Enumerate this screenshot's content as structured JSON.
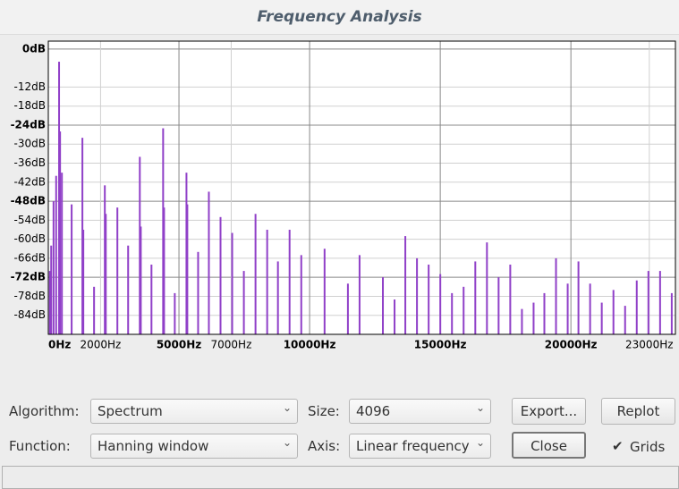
{
  "window_title": "Frequency Analysis",
  "chart_data": {
    "type": "bar",
    "color": "#9040c8",
    "x": [
      60,
      110,
      200,
      300,
      412,
      450,
      520,
      893,
      1305,
      1340,
      1751,
      2163,
      2200,
      2643,
      3055,
      3502,
      3540,
      3948,
      4394,
      4430,
      4840,
      5287,
      5320,
      5733,
      6145,
      6591,
      7037,
      7484,
      7930,
      8376,
      8788,
      9234,
      9681,
      10573,
      11466,
      11912,
      12805,
      13251,
      13663,
      14109,
      14556,
      15002,
      15448,
      15894,
      16341,
      16787,
      17233,
      17679,
      18126,
      18572,
      18984,
      19430,
      19877,
      20289,
      20735,
      21181,
      21628,
      22074,
      22520,
      22966,
      23413,
      23859
    ],
    "values": [
      -70,
      -62,
      -48,
      -40,
      -4,
      -26,
      -39,
      -49,
      -28,
      -57,
      -75,
      -43,
      -52,
      -50,
      -62,
      -34,
      -56,
      -68,
      -25,
      -50,
      -77,
      -39,
      -49,
      -64,
      -45,
      -53,
      -58,
      -70,
      -52,
      -57,
      -67,
      -57,
      -65,
      -63,
      -74,
      -65,
      -72,
      -79,
      -59,
      -66,
      -68,
      -71,
      -77,
      -75,
      -67,
      -61,
      -72,
      -68,
      -82,
      -80,
      -77,
      -66,
      -74,
      -67,
      -74,
      -80,
      -76,
      -81,
      -73,
      -70,
      -70,
      -77
    ],
    "xlim": [
      0,
      24000
    ],
    "ylim": [
      -90,
      2.5
    ],
    "xticks": [
      {
        "value": 0,
        "label": "0Hz"
      },
      {
        "value": 2000,
        "label": "2000Hz"
      },
      {
        "value": 5000,
        "label": "5000Hz"
      },
      {
        "value": 7000,
        "label": "7000Hz"
      },
      {
        "value": 10000,
        "label": "10000Hz"
      },
      {
        "value": 15000,
        "label": "15000Hz"
      },
      {
        "value": 20000,
        "label": "20000Hz"
      },
      {
        "value": 23000,
        "label": "23000Hz"
      }
    ],
    "yticks": [
      {
        "value": 0,
        "label": "0dB"
      },
      {
        "value": -12,
        "label": "-12dB"
      },
      {
        "value": -18,
        "label": "-18dB"
      },
      {
        "value": -24,
        "label": "-24dB"
      },
      {
        "value": -30,
        "label": "-30dB"
      },
      {
        "value": -36,
        "label": "-36dB"
      },
      {
        "value": -42,
        "label": "-42dB"
      },
      {
        "value": -48,
        "label": "-48dB"
      },
      {
        "value": -54,
        "label": "-54dB"
      },
      {
        "value": -60,
        "label": "-60dB"
      },
      {
        "value": -66,
        "label": "-66dB"
      },
      {
        "value": -72,
        "label": "-72dB"
      },
      {
        "value": -78,
        "label": "-78dB"
      },
      {
        "value": -84,
        "label": "-84dB"
      }
    ],
    "grid": true
  },
  "controls": {
    "algorithm_label": "Algorithm:",
    "algorithm": "Spectrum",
    "size_label": "Size:",
    "size": "4096",
    "export": "Export...",
    "replot": "Replot",
    "function_label": "Function:",
    "function": "Hanning window",
    "axis_label": "Axis:",
    "axis": "Linear frequency",
    "close": "Close",
    "grids_label": "Grids",
    "grids_checked": true
  }
}
